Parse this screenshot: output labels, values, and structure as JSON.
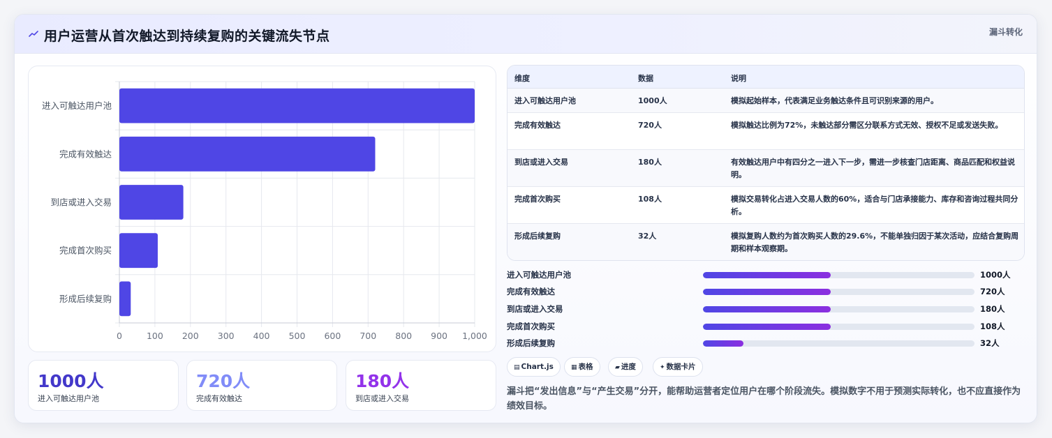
{
  "header": {
    "title": "用户运营从首次触达到持续复购的关键流失节点",
    "badge": "漏斗转化",
    "icon": "line-chart-icon"
  },
  "chart_data": {
    "type": "bar",
    "orientation": "horizontal",
    "categories": [
      "进入可触达用户池",
      "完成有效触达",
      "到店或进入交易",
      "完成首次购买",
      "形成后续复购"
    ],
    "values": [
      1000,
      720,
      180,
      108,
      32
    ],
    "xlim": [
      0,
      1000
    ],
    "xticks": [
      "0",
      "100",
      "200",
      "300",
      "400",
      "500",
      "600",
      "700",
      "800",
      "900",
      "1,000"
    ],
    "grid": true,
    "bar_color": "#4f46e5"
  },
  "stats": [
    {
      "value": "1000人",
      "label": "进入可触达用户池",
      "color": "#4338ca"
    },
    {
      "value": "720人",
      "label": "完成有效触达",
      "color": "#818cf8"
    },
    {
      "value": "180人",
      "label": "到店或进入交易",
      "color": "#9333ea"
    }
  ],
  "table": {
    "headers": [
      "维度",
      "数据",
      "说明"
    ],
    "rows": [
      {
        "dim": "进入可触达用户池",
        "data": "1000人",
        "desc": "模拟起始样本，代表满足业务触达条件且可识别来源的用户。"
      },
      {
        "dim": "完成有效触达",
        "data": "720人",
        "desc": "模拟触达比例为72%，未触达部分需区分联系方式无效、授权不足或发送失败。"
      },
      {
        "dim": "到店或进入交易",
        "data": "180人",
        "desc": "有效触达用户中有四分之一进入下一步，需进一步核查门店距离、商品匹配和权益说明。"
      },
      {
        "dim": "完成首次购买",
        "data": "108人",
        "desc": "模拟交易转化占进入交易人数的60%，适合与门店承接能力、库存和咨询过程共同分析。"
      },
      {
        "dim": "形成后续复购",
        "data": "32人",
        "desc": "模拟复购人数约为首次购买人数的29.6%，不能单独归因于某次活动，应结合复购周期和样本观察期。"
      }
    ]
  },
  "progress": [
    {
      "label": "进入可触达用户池",
      "value": "1000人",
      "fill": 0.47
    },
    {
      "label": "完成有效触达",
      "value": "720人",
      "fill": 0.47
    },
    {
      "label": "到店或进入交易",
      "value": "180人",
      "fill": 0.47
    },
    {
      "label": "完成首次购买",
      "value": "108人",
      "fill": 0.47
    },
    {
      "label": "形成后续复购",
      "value": "32人",
      "fill": 0.15
    }
  ],
  "tags": [
    {
      "icon": "▤",
      "label": "Chart.js"
    },
    {
      "icon": "▦",
      "label": "表格"
    },
    {
      "icon": "▰",
      "label": "进度"
    },
    {
      "icon": "✦",
      "label": "数据卡片"
    }
  ],
  "note": "漏斗把“发出信息”与“产生交易”分开，能帮助运营者定位用户在哪个阶段流失。模拟数字不用于预测实际转化，也不应直接作为绩效目标。"
}
